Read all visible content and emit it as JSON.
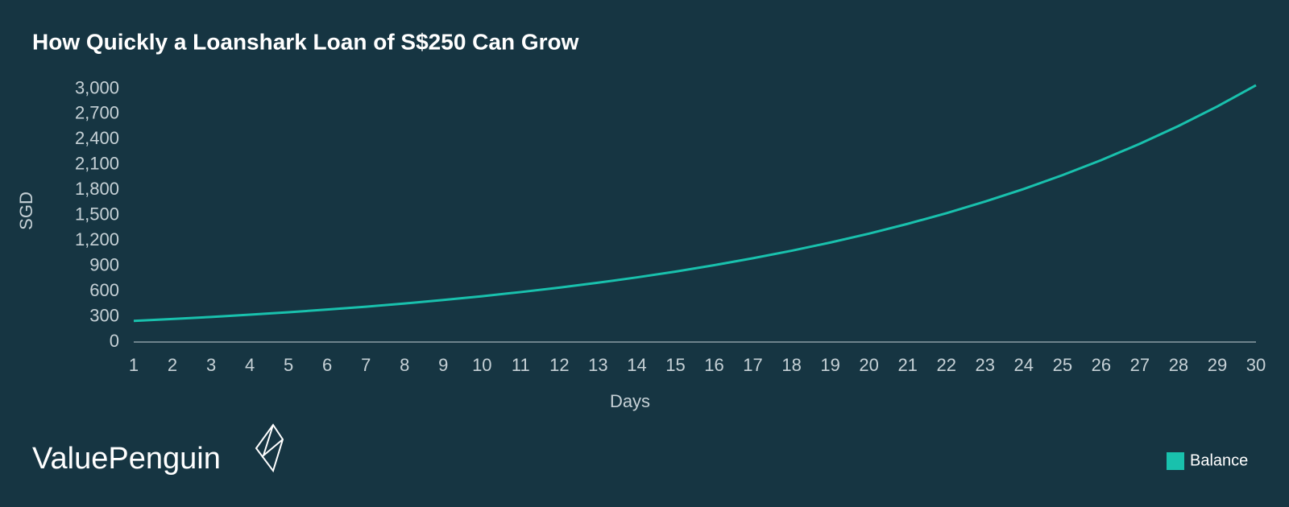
{
  "chart_data": {
    "type": "line",
    "title": "How Quickly a Loanshark Loan of S$250 Can Grow",
    "x_label": "Days",
    "y_label": "SGD",
    "brand": "ValuePenguin",
    "x": [
      1,
      2,
      3,
      4,
      5,
      6,
      7,
      8,
      9,
      10,
      11,
      12,
      13,
      14,
      15,
      16,
      17,
      18,
      19,
      20,
      21,
      22,
      23,
      24,
      25,
      26,
      27,
      28,
      29,
      30
    ],
    "xlim": [
      1,
      30
    ],
    "xticks": [
      1,
      2,
      3,
      4,
      5,
      6,
      7,
      8,
      9,
      10,
      11,
      12,
      13,
      14,
      15,
      16,
      17,
      18,
      19,
      20,
      21,
      22,
      23,
      24,
      25,
      26,
      27,
      28,
      29,
      30
    ],
    "ylim": [
      0,
      3100
    ],
    "yticks": [
      0,
      300,
      600,
      900,
      {
        "value": 1200,
        "label": "1,200"
      },
      {
        "value": 1500,
        "label": "1,500"
      },
      {
        "value": 1800,
        "label": "1,800"
      },
      {
        "value": 2100,
        "label": "2,100"
      },
      {
        "value": 2400,
        "label": "2,400"
      },
      {
        "value": 2700,
        "label": "2,700"
      },
      {
        "value": 3000,
        "label": "3,000"
      }
    ],
    "grid": false,
    "legend": "bottom-right",
    "series": [
      {
        "name": "Balance",
        "color": "#19c1ad",
        "values": [
          250,
          272.5,
          297,
          324,
          353,
          385,
          419,
          457,
          498,
          543,
          592,
          645,
          703,
          766,
          835,
          911,
          993,
          1082,
          1179,
          1285,
          1401,
          1527,
          1665,
          1814,
          1978,
          2156,
          2350,
          2561,
          2792,
          3043
        ]
      }
    ]
  }
}
